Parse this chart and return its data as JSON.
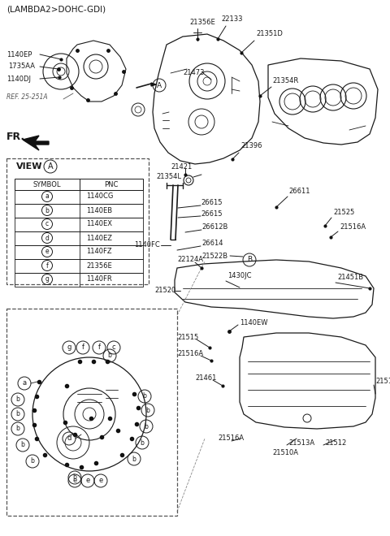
{
  "bg_color": "#ffffff",
  "line_color": "#1a1a1a",
  "text_color": "#1a1a1a",
  "fig_width": 4.8,
  "fig_height": 6.6,
  "dpi": 100,
  "title": "(LAMBDA2>DOHC-GDI)",
  "view_table": {
    "rows": [
      {
        "symbol": "a",
        "pnc": "1140CG"
      },
      {
        "symbol": "b",
        "pnc": "1140EB"
      },
      {
        "symbol": "c",
        "pnc": "1140EX"
      },
      {
        "symbol": "d",
        "pnc": "1140EZ"
      },
      {
        "symbol": "e",
        "pnc": "1140FZ"
      },
      {
        "symbol": "f",
        "pnc": "21356E"
      },
      {
        "symbol": "g",
        "pnc": "1140FR"
      }
    ]
  }
}
